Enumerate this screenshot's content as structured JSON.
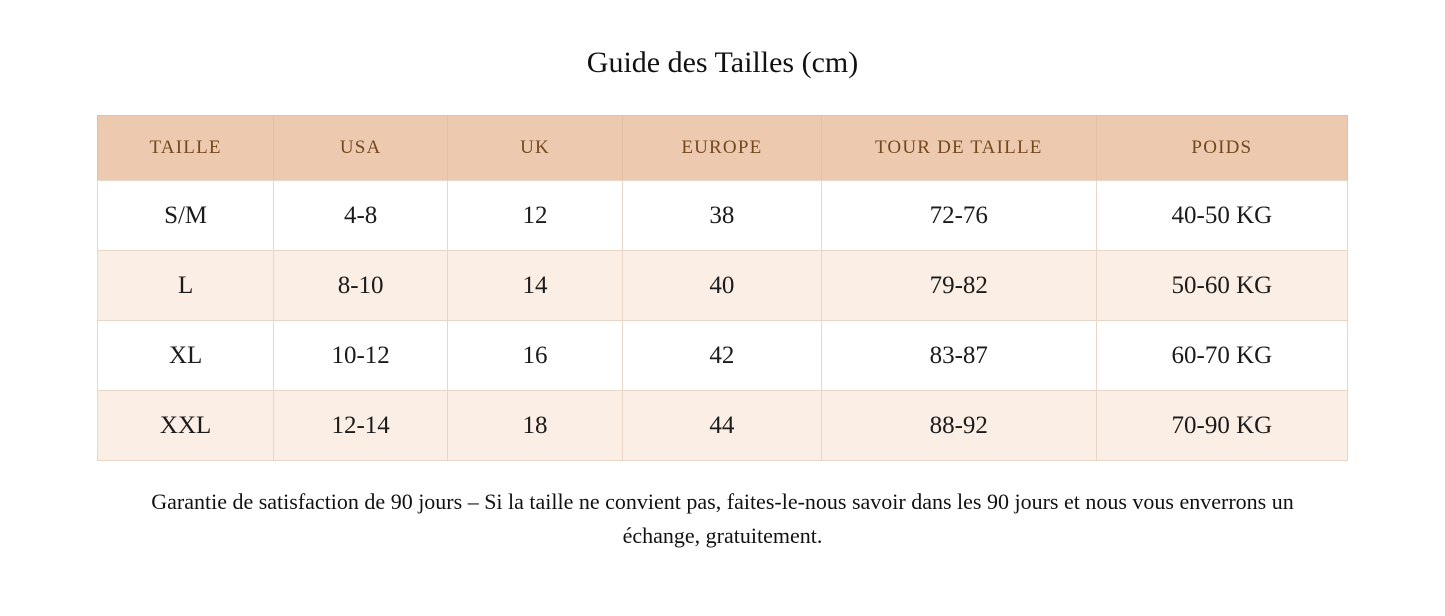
{
  "page_title": "Guide des Tailles (cm)",
  "table": {
    "columns": [
      "TAILLE",
      "USA",
      "UK",
      "EUROPE",
      "TOUR DE TAILLE",
      "POIDS"
    ],
    "rows": [
      {
        "cells": [
          "S/M",
          "4-8",
          "12",
          "38",
          "72-76",
          "40-50 KG"
        ]
      },
      {
        "cells": [
          "L",
          "8-10",
          "14",
          "40",
          "79-82",
          "50-60 KG"
        ]
      },
      {
        "cells": [
          "XL",
          "10-12",
          "16",
          "42",
          "83-87",
          "60-70 KG"
        ]
      },
      {
        "cells": [
          "XXL",
          "12-14",
          "18",
          "44",
          "88-92",
          "70-90 KG"
        ]
      }
    ]
  },
  "footer": {
    "guarantee_text": "Garantie de satisfaction de 90 jours – Si la taille ne convient pas, faites-le-nous savoir dans les 90 jours et nous vous enverrons un échange, gratuitement."
  },
  "colors": {
    "header_bg": "#edc9b0",
    "header_text": "#74481f",
    "row_bg": "#ffffff",
    "row_alt_bg": "#fbeee5",
    "border": "#e9d6c7",
    "body_text": "#1b1b1b"
  }
}
